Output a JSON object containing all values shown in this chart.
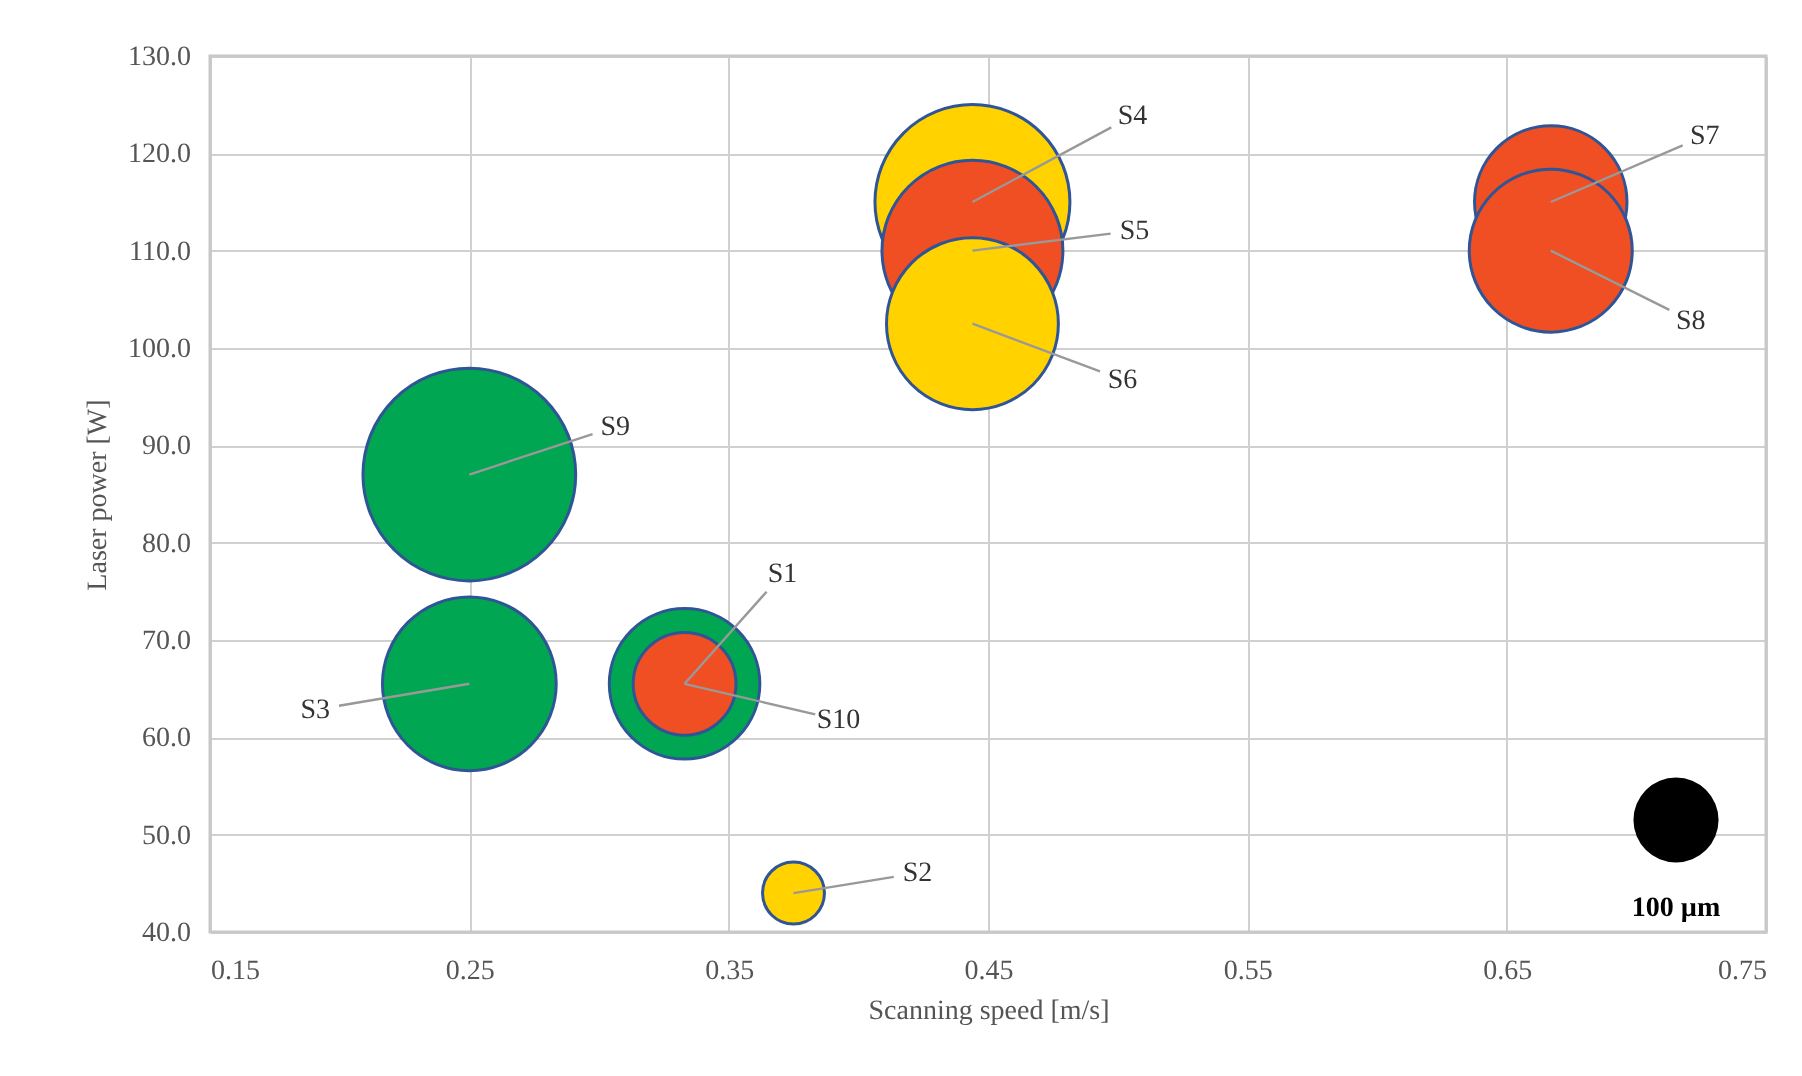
{
  "chart_data": {
    "type": "bubble",
    "xlabel": "Scanning speed [m/s]",
    "ylabel": "Laser power [W]",
    "xlim": [
      0.15,
      0.75
    ],
    "xticks": [
      0.15,
      0.25,
      0.35,
      0.45,
      0.55,
      0.65,
      0.75
    ],
    "ylim": [
      40,
      130
    ],
    "yticks": [
      {
        "value": 40,
        "label": "40.0"
      },
      {
        "value": 50,
        "label": "50.0"
      },
      {
        "value": 60,
        "label": "60.0"
      },
      {
        "value": 70,
        "label": "70.0"
      },
      {
        "value": 80,
        "label": "80.0"
      },
      {
        "value": 90,
        "label": "90.0"
      },
      {
        "value": 100,
        "label": "100.0"
      },
      {
        "value": 110,
        "label": "110.0"
      },
      {
        "value": 120,
        "label": "120.0"
      },
      {
        "value": 130,
        "label": "130.0"
      }
    ],
    "grid": true,
    "series": [
      {
        "x": [
          0.25,
          0.25,
          0.333,
          0.333,
          0.375,
          0.444,
          0.444,
          0.444,
          0.667,
          0.667
        ],
        "values": [
          87,
          65.5,
          65.5,
          65.5,
          44,
          115,
          110,
          102.5,
          115,
          110
        ],
        "sizes": [
          625,
          417,
          313,
          146,
          53,
          525,
          452,
          408,
          321,
          367
        ],
        "colors": [
          "#00a651",
          "#00a651",
          "#00a651",
          "#f04e23",
          "#ffd200",
          "#ffd200",
          "#f04e23",
          "#ffd200",
          "#f04e23",
          "#f04e23"
        ]
      }
    ],
    "size_legend": [
      {
        "value": 100,
        "label": "100 µm"
      }
    ],
    "annotations": [
      {
        "text": "S9",
        "x": 0.25,
        "y": 87
      },
      {
        "text": "S3",
        "x": 0.25,
        "y": 65.5
      },
      {
        "text": "S1",
        "x": 0.333,
        "y": 65.5
      },
      {
        "text": "S10",
        "x": 0.333,
        "y": 65.5
      },
      {
        "text": "S2",
        "x": 0.375,
        "y": 44
      },
      {
        "text": "S4",
        "x": 0.444,
        "y": 115
      },
      {
        "text": "S5",
        "x": 0.444,
        "y": 110
      },
      {
        "text": "S6",
        "x": 0.444,
        "y": 102.5
      },
      {
        "text": "S7",
        "x": 0.667,
        "y": 115
      },
      {
        "text": "S8",
        "x": 0.667,
        "y": 110
      }
    ]
  }
}
